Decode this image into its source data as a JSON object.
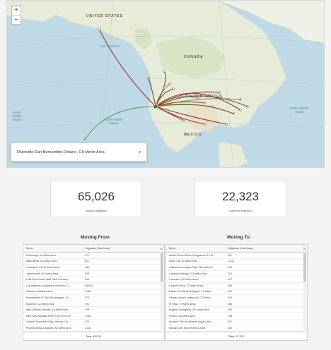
{
  "map": {
    "labels": {
      "united_states_top": "UNITED STATES",
      "canada": "CANADA",
      "united_states": "UNITED STATES",
      "mexico": "MEXICO",
      "gulf_alaska": "Gulf of Alaska",
      "north_pacific_left": "North Pacific Ocean",
      "north_pacific": "North Pacific Ocean",
      "north_atlantic": "North Atlantic Ocean"
    },
    "zoom_in": "+",
    "zoom_out": "−",
    "dropdown_value": "Riverside-San Bernardino-Ontario, CA Metro Area",
    "dropdown_icon": "chevron-down-icon"
  },
  "stats": {
    "inbound_value": "65,026",
    "inbound_label": "Inbound Migration",
    "outbound_value": "22,323",
    "outbound_label": "Outbound Migration"
  },
  "moving_from": {
    "title": "Moving From",
    "col_metro": "Metro",
    "col_value": "Migration (Gain/Loss)",
    "rows": [
      [
        "Anchorage, AK Metro Area",
        "471"
      ],
      [
        "Bakersfield, CA Metro Area",
        "621"
      ],
      [
        "Columbus, GA-AL Metro Area",
        "440"
      ],
      [
        "Jacksonville, NC Metro Area",
        "298"
      ],
      [
        "Little Rock-North Little Rock-Conway...",
        "300"
      ],
      [
        "Los Angeles-Long Beach-Anaheim, C...",
        "35,614"
      ],
      [
        "Madera, CA Metro Area",
        "1,281"
      ],
      [
        "Minneapolis-St. Paul-Bloomington, M...",
        "279"
      ],
      [
        "Modesto, CA Metro Area",
        "791"
      ],
      [
        "New Orleans-Metairie, LA Metro Area",
        "338"
      ],
      [
        "New York-Newark-Jersey City, NY-NJ-P...",
        "1,063"
      ],
      [
        "Oxnard-Thousand Oaks-Ventura, CA ...",
        "672"
      ],
      [
        "Phoenix-Mesa-Chandler, AZ Metro Area",
        "1,342"
      ]
    ],
    "total": "Total: 65,026"
  },
  "moving_to": {
    "title": "Moving To",
    "col_metro": "Metro",
    "col_value": "Migration (Gain/Loss)",
    "rows": [
      [
        "Austin-Round Rock-Georgetown, TX M...",
        "767"
      ],
      [
        "Boise City, ID Metro Area",
        "1,212"
      ],
      [
        "California-Lexington Park, MD Metro A...",
        "224"
      ],
      [
        "Colorado Springs, CO Metro Area",
        "224"
      ],
      [
        "Columbia, SC Metro Area",
        "347"
      ],
      [
        "Corpus Christi, TX Metro Area",
        "386"
      ],
      [
        "Dallas-Fort Worth-Arlington, TX Metro ...",
        "421"
      ],
      [
        "Denver-Aurora-Lakewood, CO Metro ...",
        "924"
      ],
      [
        "El Paso, TX Metro Area",
        "254"
      ],
      [
        "Eugene-Springfield, OR Metro Area",
        "292"
      ],
      [
        "Fresno, CA Metro Area",
        "784"
      ],
      [
        "Houston-The Woodlands-Sugar Land,...",
        "637"
      ],
      [
        "Kansas City, MO-KS Metro Area",
        "305"
      ]
    ],
    "total": "Total: 22,323"
  },
  "colors": {
    "inbound_flow": "#8b1a1a",
    "outbound_flow": "#4a8a2a",
    "ocean": "#bfd9e6",
    "land": "#e8eedd"
  }
}
